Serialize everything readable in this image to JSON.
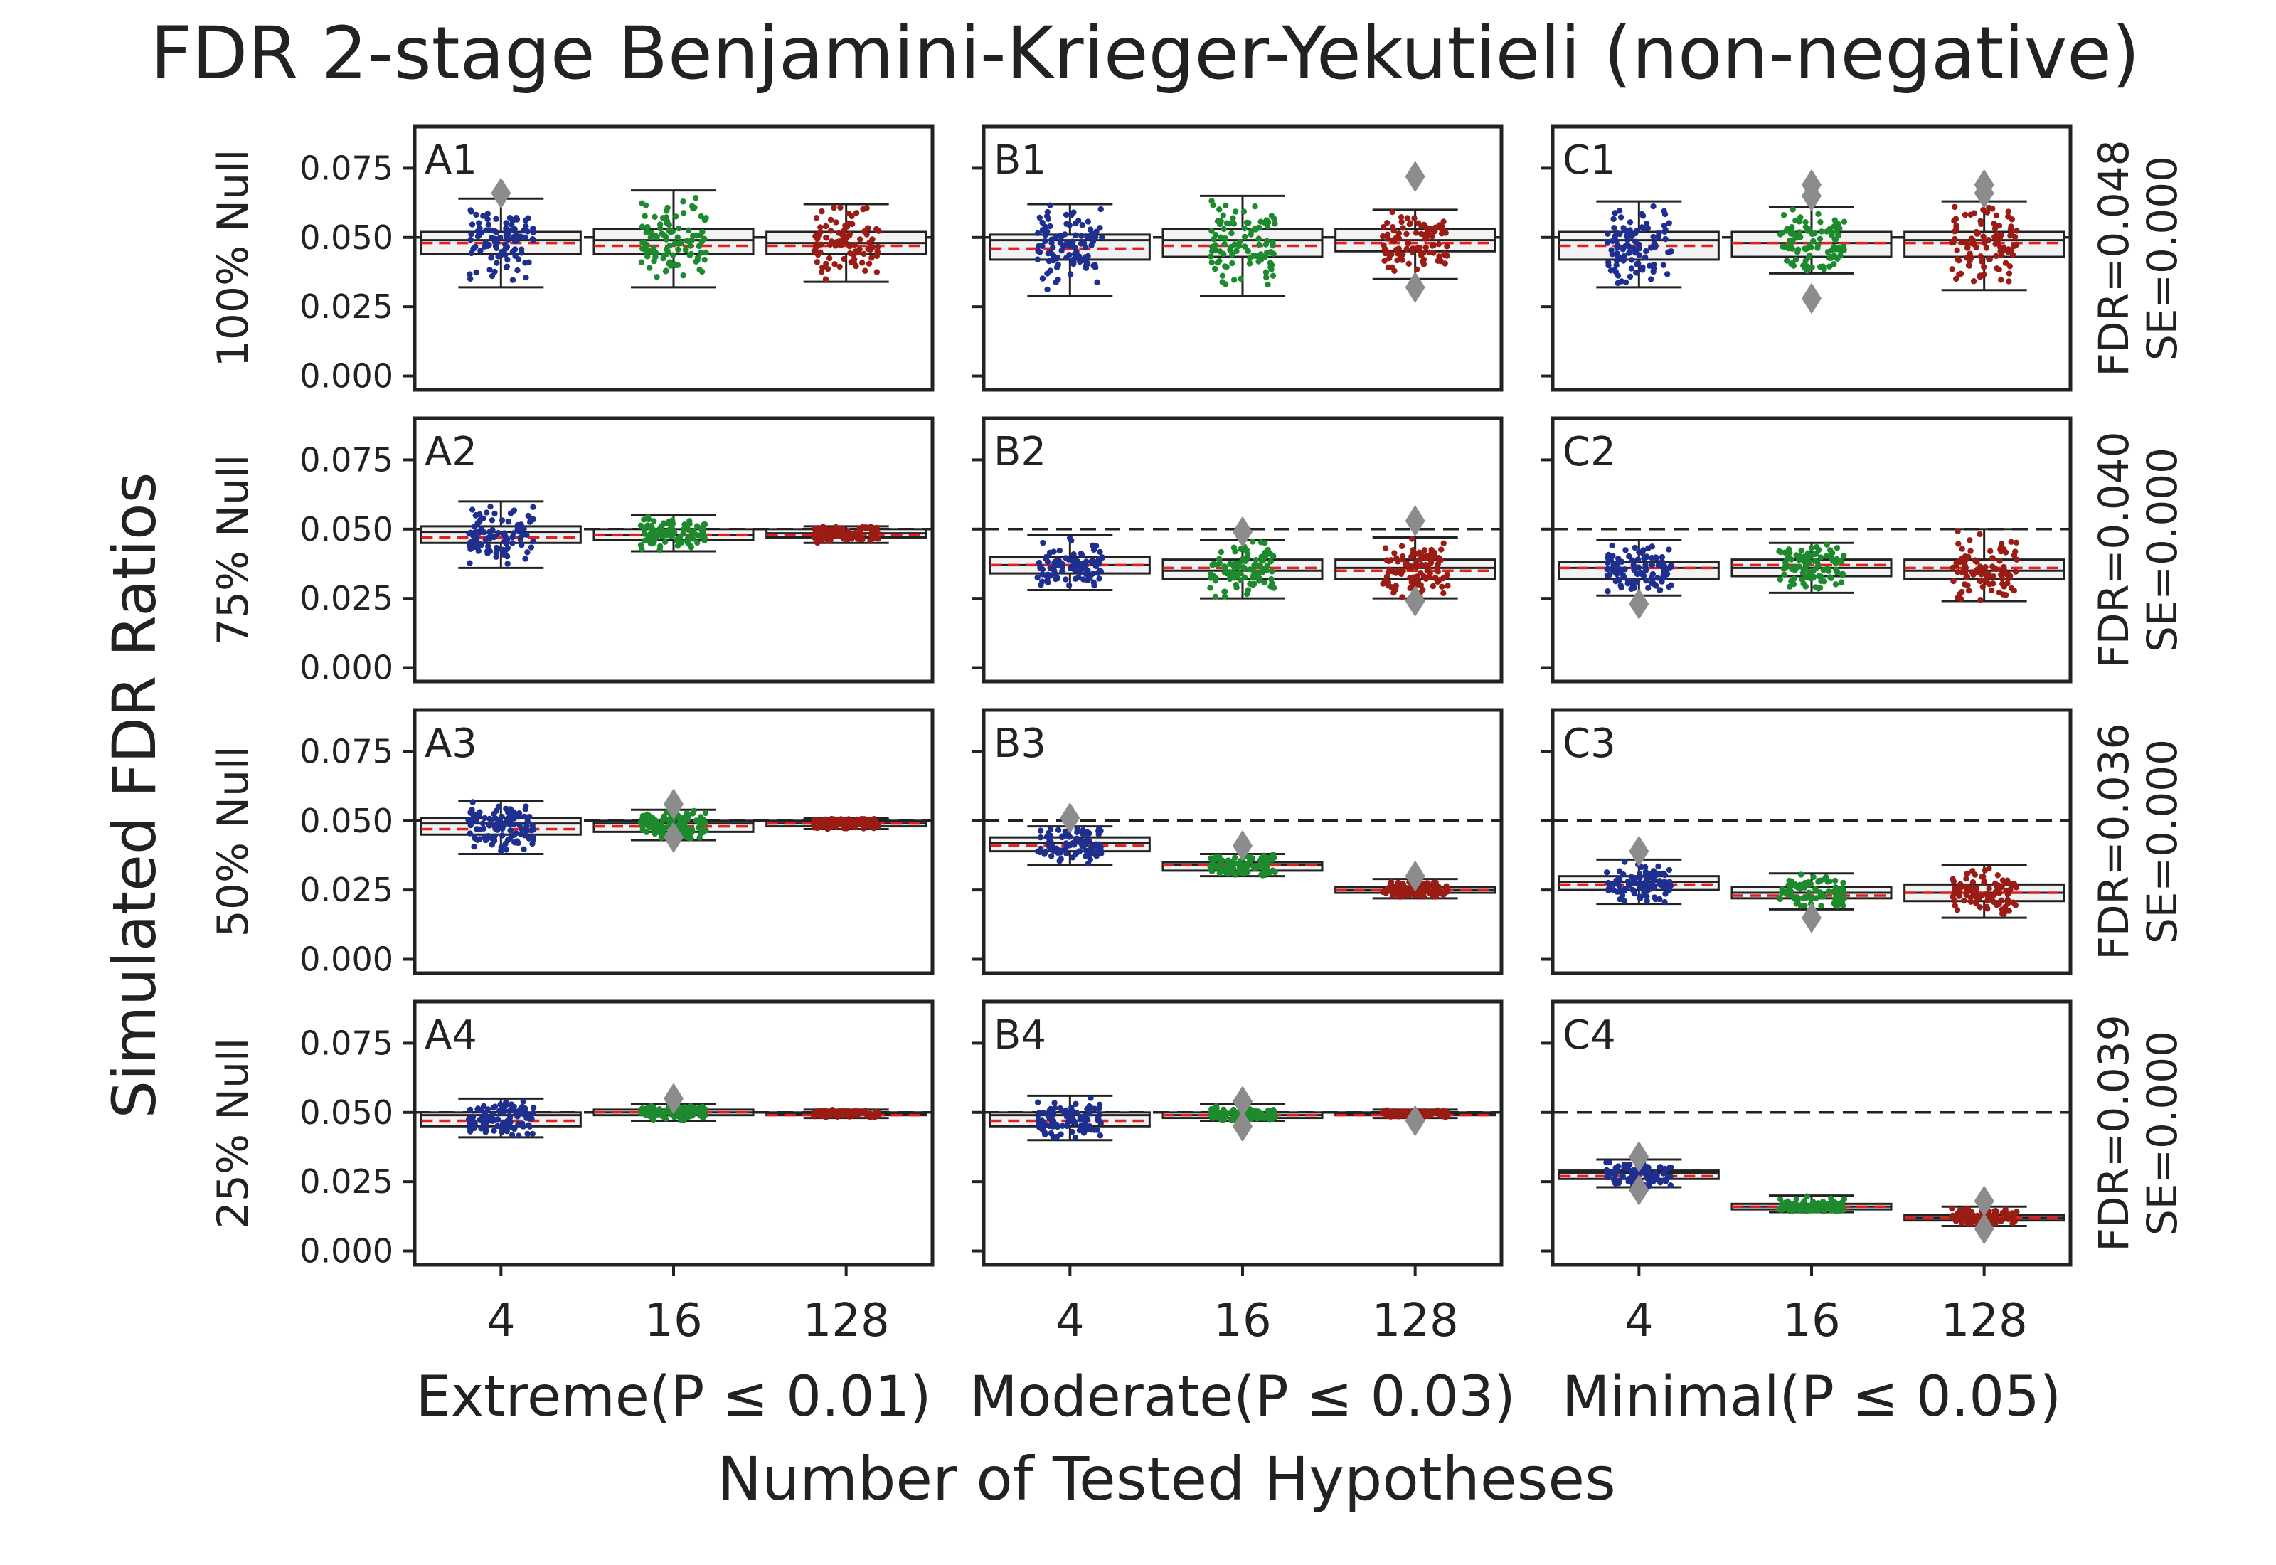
{
  "title": "FDR 2-stage Benjamini-Krieger-Yekutieli (non-negative)",
  "ylabel": "Simulated FDR Ratios",
  "xlabel": "Number of Tested Hypotheses",
  "colors": {
    "4": "#1f2f8f",
    "16": "#1e8a2e",
    "128": "#9a1c14",
    "mean_line": "#e02020",
    "outlier": "#8c8c8c",
    "ref_line": "#222222",
    "frame": "#222222",
    "box_fill": "#f2f2f2"
  },
  "chart_data": {
    "type": "box",
    "ylim": [
      -0.005,
      0.09
    ],
    "yticks": [
      "0.075",
      "0.050",
      "0.025",
      "0.000"
    ],
    "ytick_values": [
      0.075,
      0.05,
      0.025,
      0.0
    ],
    "reference_line": 0.05,
    "categories": [
      "4",
      "16",
      "128"
    ],
    "columns": [
      {
        "key": "A",
        "label": "Extreme(P ≤ 0.01)"
      },
      {
        "key": "B",
        "label": "Moderate(P ≤ 0.03)"
      },
      {
        "key": "C",
        "label": "Minimal(P ≤ 0.05)"
      }
    ],
    "rows": [
      {
        "label": "100% Null",
        "note1": "FDR=0.048",
        "note2": "SE=0.000"
      },
      {
        "label": "75% Null",
        "note1": "FDR=0.040",
        "note2": "SE=0.000"
      },
      {
        "label": "50% Null",
        "note1": "FDR=0.036",
        "note2": "SE=0.000"
      },
      {
        "label": "25% Null",
        "note1": "FDR=0.039",
        "note2": "SE=0.000"
      }
    ],
    "panels": [
      [
        {
          "id": "A1",
          "boxes": [
            {
              "q1": 0.044,
              "median": 0.049,
              "q3": 0.052,
              "wlo": 0.032,
              "whi": 0.064,
              "mean": 0.048,
              "outliers": [
                0.066
              ]
            },
            {
              "q1": 0.044,
              "median": 0.049,
              "q3": 0.053,
              "wlo": 0.032,
              "whi": 0.067,
              "mean": 0.047,
              "outliers": []
            },
            {
              "q1": 0.044,
              "median": 0.048,
              "q3": 0.052,
              "wlo": 0.034,
              "whi": 0.062,
              "mean": 0.047,
              "outliers": []
            }
          ]
        },
        {
          "id": "B1",
          "boxes": [
            {
              "q1": 0.042,
              "median": 0.049,
              "q3": 0.051,
              "wlo": 0.029,
              "whi": 0.062,
              "mean": 0.046,
              "outliers": []
            },
            {
              "q1": 0.043,
              "median": 0.049,
              "q3": 0.053,
              "wlo": 0.029,
              "whi": 0.065,
              "mean": 0.047,
              "outliers": []
            },
            {
              "q1": 0.045,
              "median": 0.049,
              "q3": 0.053,
              "wlo": 0.035,
              "whi": 0.06,
              "mean": 0.048,
              "outliers": [
                0.072,
                0.032
              ]
            }
          ]
        },
        {
          "id": "C1",
          "boxes": [
            {
              "q1": 0.042,
              "median": 0.049,
              "q3": 0.052,
              "wlo": 0.032,
              "whi": 0.063,
              "mean": 0.047,
              "outliers": []
            },
            {
              "q1": 0.043,
              "median": 0.048,
              "q3": 0.052,
              "wlo": 0.037,
              "whi": 0.061,
              "mean": 0.048,
              "outliers": [
                0.069,
                0.065,
                0.028
              ]
            },
            {
              "q1": 0.043,
              "median": 0.049,
              "q3": 0.052,
              "wlo": 0.031,
              "whi": 0.063,
              "mean": 0.048,
              "outliers": [
                0.069,
                0.066
              ]
            }
          ]
        }
      ],
      [
        {
          "id": "A2",
          "boxes": [
            {
              "q1": 0.045,
              "median": 0.049,
              "q3": 0.051,
              "wlo": 0.036,
              "whi": 0.06,
              "mean": 0.047,
              "outliers": []
            },
            {
              "q1": 0.046,
              "median": 0.048,
              "q3": 0.05,
              "wlo": 0.042,
              "whi": 0.055,
              "mean": 0.048,
              "outliers": []
            },
            {
              "q1": 0.047,
              "median": 0.0485,
              "q3": 0.05,
              "wlo": 0.045,
              "whi": 0.051,
              "mean": 0.048,
              "outliers": []
            }
          ]
        },
        {
          "id": "B2",
          "boxes": [
            {
              "q1": 0.034,
              "median": 0.037,
              "q3": 0.04,
              "wlo": 0.028,
              "whi": 0.048,
              "mean": 0.037,
              "outliers": []
            },
            {
              "q1": 0.032,
              "median": 0.035,
              "q3": 0.039,
              "wlo": 0.025,
              "whi": 0.046,
              "mean": 0.036,
              "outliers": [
                0.049
              ]
            },
            {
              "q1": 0.032,
              "median": 0.036,
              "q3": 0.039,
              "wlo": 0.025,
              "whi": 0.047,
              "mean": 0.035,
              "outliers": [
                0.053,
                0.024
              ]
            }
          ]
        },
        {
          "id": "C2",
          "boxes": [
            {
              "q1": 0.032,
              "median": 0.036,
              "q3": 0.038,
              "wlo": 0.026,
              "whi": 0.046,
              "mean": 0.036,
              "outliers": [
                0.023
              ]
            },
            {
              "q1": 0.033,
              "median": 0.036,
              "q3": 0.039,
              "wlo": 0.027,
              "whi": 0.045,
              "mean": 0.037,
              "outliers": []
            },
            {
              "q1": 0.032,
              "median": 0.035,
              "q3": 0.039,
              "wlo": 0.024,
              "whi": 0.05,
              "mean": 0.036,
              "outliers": []
            }
          ]
        }
      ],
      [
        {
          "id": "A3",
          "boxes": [
            {
              "q1": 0.045,
              "median": 0.049,
              "q3": 0.051,
              "wlo": 0.038,
              "whi": 0.057,
              "mean": 0.047,
              "outliers": []
            },
            {
              "q1": 0.046,
              "median": 0.049,
              "q3": 0.05,
              "wlo": 0.043,
              "whi": 0.054,
              "mean": 0.048,
              "outliers": [
                0.056,
                0.044
              ]
            },
            {
              "q1": 0.048,
              "median": 0.049,
              "q3": 0.05,
              "wlo": 0.047,
              "whi": 0.051,
              "mean": 0.049,
              "outliers": []
            }
          ]
        },
        {
          "id": "B3",
          "boxes": [
            {
              "q1": 0.039,
              "median": 0.042,
              "q3": 0.044,
              "wlo": 0.034,
              "whi": 0.048,
              "mean": 0.041,
              "outliers": [
                0.051
              ]
            },
            {
              "q1": 0.032,
              "median": 0.034,
              "q3": 0.035,
              "wlo": 0.03,
              "whi": 0.038,
              "mean": 0.034,
              "outliers": [
                0.041
              ]
            },
            {
              "q1": 0.024,
              "median": 0.025,
              "q3": 0.026,
              "wlo": 0.022,
              "whi": 0.029,
              "mean": 0.025,
              "outliers": [
                0.03
              ]
            }
          ]
        },
        {
          "id": "C3",
          "boxes": [
            {
              "q1": 0.025,
              "median": 0.028,
              "q3": 0.03,
              "wlo": 0.02,
              "whi": 0.036,
              "mean": 0.027,
              "outliers": [
                0.039
              ]
            },
            {
              "q1": 0.022,
              "median": 0.024,
              "q3": 0.026,
              "wlo": 0.018,
              "whi": 0.031,
              "mean": 0.023,
              "outliers": [
                0.015
              ]
            },
            {
              "q1": 0.021,
              "median": 0.024,
              "q3": 0.027,
              "wlo": 0.015,
              "whi": 0.034,
              "mean": 0.024,
              "outliers": []
            }
          ]
        }
      ],
      [
        {
          "id": "A4",
          "boxes": [
            {
              "q1": 0.045,
              "median": 0.049,
              "q3": 0.05,
              "wlo": 0.041,
              "whi": 0.055,
              "mean": 0.047,
              "outliers": []
            },
            {
              "q1": 0.049,
              "median": 0.05,
              "q3": 0.051,
              "wlo": 0.047,
              "whi": 0.053,
              "mean": 0.05,
              "outliers": [
                0.055
              ]
            },
            {
              "q1": 0.049,
              "median": 0.0495,
              "q3": 0.05,
              "wlo": 0.048,
              "whi": 0.051,
              "mean": 0.049,
              "outliers": []
            }
          ]
        },
        {
          "id": "B4",
          "boxes": [
            {
              "q1": 0.045,
              "median": 0.049,
              "q3": 0.05,
              "wlo": 0.04,
              "whi": 0.056,
              "mean": 0.047,
              "outliers": []
            },
            {
              "q1": 0.048,
              "median": 0.049,
              "q3": 0.05,
              "wlo": 0.047,
              "whi": 0.053,
              "mean": 0.049,
              "outliers": [
                0.054,
                0.045
              ]
            },
            {
              "q1": 0.049,
              "median": 0.0495,
              "q3": 0.05,
              "wlo": 0.048,
              "whi": 0.051,
              "mean": 0.049,
              "outliers": [
                0.047
              ]
            }
          ]
        },
        {
          "id": "C4",
          "boxes": [
            {
              "q1": 0.026,
              "median": 0.028,
              "q3": 0.029,
              "wlo": 0.023,
              "whi": 0.033,
              "mean": 0.027,
              "outliers": [
                0.034,
                0.022
              ]
            },
            {
              "q1": 0.015,
              "median": 0.016,
              "q3": 0.017,
              "wlo": 0.014,
              "whi": 0.02,
              "mean": 0.016,
              "outliers": []
            },
            {
              "q1": 0.011,
              "median": 0.012,
              "q3": 0.013,
              "wlo": 0.009,
              "whi": 0.016,
              "mean": 0.012,
              "outliers": [
                0.018,
                0.008
              ]
            }
          ]
        }
      ]
    ]
  }
}
